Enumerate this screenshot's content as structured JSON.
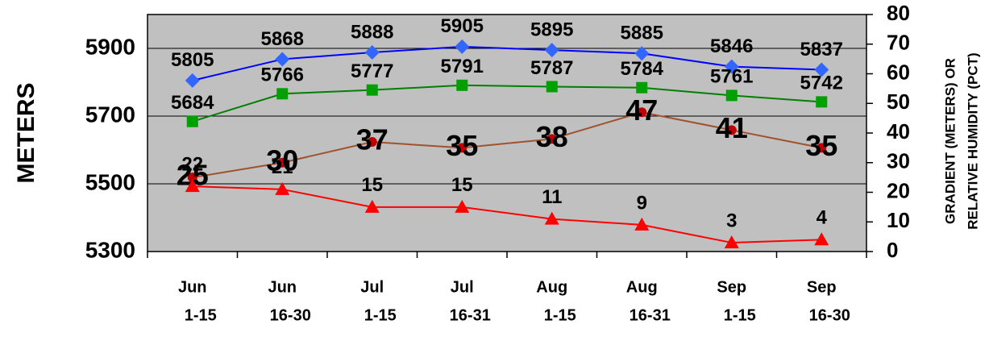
{
  "chart_data": {
    "type": "line",
    "y_label": "METERS",
    "y2_label": [
      "GRADIENT (METERS) OR",
      "RELATIVE HUMIDITY (PCT)"
    ],
    "categories": [
      [
        "Jun",
        "1-15"
      ],
      [
        "Jun",
        "16-30"
      ],
      [
        "Jul",
        "1-15"
      ],
      [
        "Jul",
        "16-31"
      ],
      [
        "Aug",
        "1-15"
      ],
      [
        "Aug",
        "16-31"
      ],
      [
        "Sep",
        "1-15"
      ],
      [
        "Sep",
        "16-30"
      ]
    ],
    "ylim": [
      5300,
      6000
    ],
    "yticks": [
      5300,
      5500,
      5700,
      5900
    ],
    "y2lim": [
      0,
      80
    ],
    "y2ticks": [
      0,
      10,
      20,
      30,
      40,
      50,
      60,
      70,
      80
    ],
    "grid": true,
    "series": [
      {
        "color": "#0000ff",
        "marker_color": "#3366ff",
        "marker": "diamond",
        "values": [
          5805,
          5868,
          5888,
          5905,
          5895,
          5885,
          5846,
          5837
        ]
      },
      {
        "color": "#008000",
        "marker_color": "#00a000",
        "marker": "square",
        "values": [
          5684,
          5766,
          5777,
          5791,
          5787,
          5784,
          5761,
          5742
        ]
      },
      {
        "color": "#a0522d",
        "marker_color": "#c00000",
        "marker": "circle",
        "axis": "y2",
        "values": [
          25,
          30,
          37,
          35,
          38,
          47,
          41,
          35
        ]
      },
      {
        "color": "#ff0000",
        "marker_color": "#ff0000",
        "marker": "triangle",
        "axis": "y2",
        "values": [
          22,
          21,
          15,
          15,
          11,
          9,
          3,
          4
        ]
      }
    ]
  }
}
